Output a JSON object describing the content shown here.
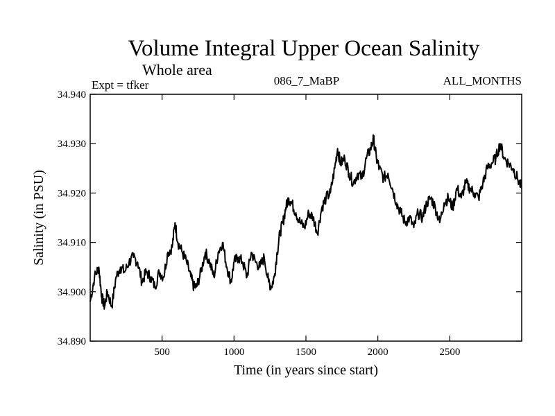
{
  "chart_data": {
    "type": "line",
    "title": "Volume Integral Upper Ocean Salinity",
    "subtitle": "Whole area",
    "meta_left": "Expt = tfker",
    "meta_center": "086_7_MaBP",
    "meta_right": "ALL_MONTHS",
    "xlabel": "Time (in years since start)",
    "ylabel": "Salinity (in PSU)",
    "xlim": [
      0,
      3000
    ],
    "ylim": [
      34.89,
      34.94
    ],
    "xticks": [
      500,
      1000,
      1500,
      2000,
      2500
    ],
    "xtick_labels": [
      "500",
      "1000",
      "1500",
      "2000",
      "2500"
    ],
    "yticks": [
      34.89,
      34.9,
      34.91,
      34.92,
      34.93,
      34.94
    ],
    "ytick_labels": [
      "34.890",
      "34.900",
      "34.910",
      "34.920",
      "34.930",
      "34.940"
    ],
    "grid": false,
    "series": [
      {
        "color": "#000000",
        "x": [
          0,
          30,
          60,
          80,
          100,
          120,
          150,
          180,
          210,
          240,
          270,
          300,
          330,
          360,
          390,
          420,
          450,
          480,
          510,
          540,
          570,
          590,
          610,
          640,
          670,
          700,
          720,
          740,
          770,
          800,
          830,
          860,
          890,
          920,
          950,
          980,
          1000,
          1030,
          1060,
          1090,
          1120,
          1150,
          1180,
          1210,
          1240,
          1260,
          1280,
          1300,
          1320,
          1340,
          1360,
          1380,
          1400,
          1430,
          1460,
          1490,
          1520,
          1550,
          1580,
          1610,
          1640,
          1670,
          1700,
          1720,
          1740,
          1770,
          1800,
          1830,
          1860,
          1890,
          1920,
          1950,
          1970,
          1990,
          2010,
          2040,
          2070,
          2100,
          2130,
          2160,
          2190,
          2220,
          2250,
          2280,
          2310,
          2340,
          2370,
          2400,
          2430,
          2460,
          2490,
          2520,
          2550,
          2580,
          2610,
          2640,
          2670,
          2700,
          2730,
          2760,
          2790,
          2820,
          2850,
          2880,
          2910,
          2940,
          2970,
          3000
        ],
        "y": [
          34.898,
          34.903,
          34.905,
          34.899,
          34.897,
          34.9,
          34.897,
          34.903,
          34.905,
          34.904,
          34.906,
          34.907,
          34.906,
          34.902,
          34.904,
          34.903,
          34.901,
          34.904,
          34.903,
          34.908,
          34.909,
          34.914,
          34.91,
          34.908,
          34.906,
          34.903,
          34.901,
          34.901,
          34.904,
          34.908,
          34.906,
          34.903,
          34.908,
          34.91,
          34.905,
          34.902,
          34.906,
          34.907,
          34.906,
          34.903,
          34.908,
          34.906,
          34.905,
          34.907,
          34.902,
          34.901,
          34.903,
          34.908,
          34.912,
          34.914,
          34.917,
          34.919,
          34.918,
          34.916,
          34.914,
          34.913,
          34.916,
          34.915,
          34.912,
          34.917,
          34.919,
          34.92,
          34.925,
          34.929,
          34.926,
          34.927,
          34.924,
          34.922,
          34.924,
          34.923,
          34.927,
          34.929,
          34.931,
          34.927,
          34.925,
          34.923,
          34.924,
          34.921,
          34.918,
          34.916,
          34.914,
          34.915,
          34.913,
          34.916,
          34.915,
          34.918,
          34.919,
          34.917,
          34.914,
          34.918,
          34.919,
          34.917,
          34.921,
          34.919,
          34.922,
          34.921,
          34.92,
          34.919,
          34.922,
          34.925,
          34.926,
          34.927,
          34.93,
          34.927,
          34.926,
          34.925,
          34.923,
          34.921
        ]
      }
    ]
  }
}
